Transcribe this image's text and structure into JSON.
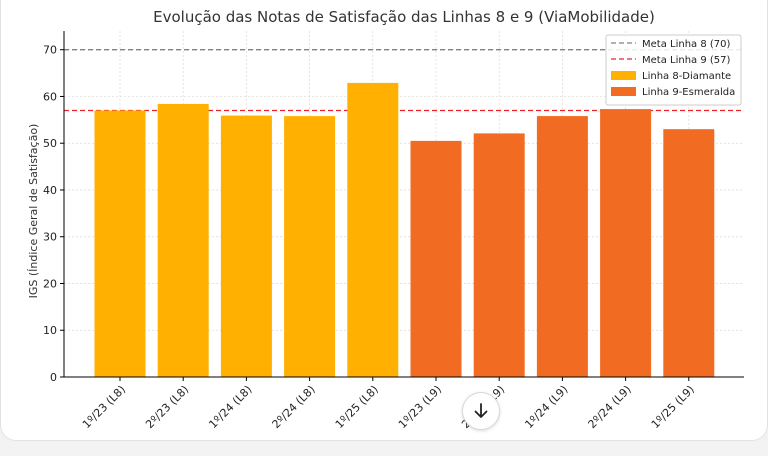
{
  "chart_data": {
    "type": "bar",
    "title": "Evolução das Notas de Satisfação das Linhas 8 e 9 (ViaMobilidade)",
    "xlabel": "",
    "ylabel": "IGS (Índice Geral de Satisfação)",
    "ylim": [
      0,
      74
    ],
    "yticks": [
      0,
      10,
      20,
      30,
      40,
      50,
      60,
      70
    ],
    "grid": true,
    "legend_position": "top-right",
    "categories": [
      "1º/23 (L8)",
      "2º/23 (L8)",
      "1º/24 (L8)",
      "2º/24 (L8)",
      "1º/25 (L8)",
      "1º/23 (L9)",
      "2º/23 (L9)",
      "1º/24 (L9)",
      "2º/24 (L9)",
      "1º/25 (L9)"
    ],
    "series": [
      {
        "name": "Linha 8-Diamante",
        "color": "#ffb000",
        "values": [
          57.0,
          58.4,
          55.9,
          55.8,
          62.9,
          null,
          null,
          null,
          null,
          null
        ]
      },
      {
        "name": "Linha 9-Esmeralda",
        "color": "#f26b22",
        "values": [
          null,
          null,
          null,
          null,
          null,
          50.5,
          52.1,
          55.8,
          57.3,
          53.0
        ]
      }
    ],
    "reference_lines": [
      {
        "name": "Meta Linha 8 (70)",
        "value": 70,
        "color": "#808080",
        "style": "dashed"
      },
      {
        "name": "Meta Linha 9 (57)",
        "value": 57,
        "color": "#e8232a",
        "style": "dashed"
      }
    ]
  },
  "ui": {
    "scroll_icon": "arrow-down-icon"
  }
}
